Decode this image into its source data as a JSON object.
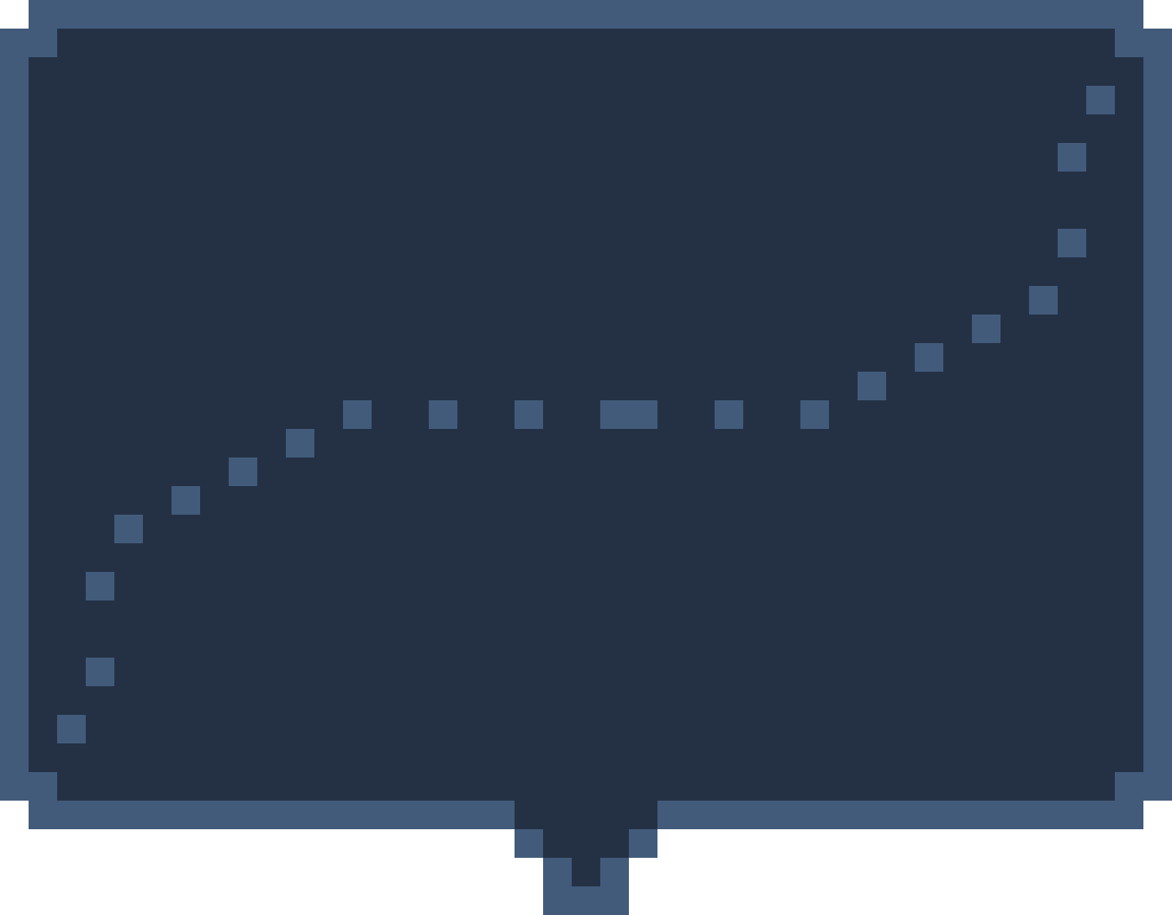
{
  "widget": {
    "kind": "pixel-art speech bubble",
    "text": ""
  },
  "colors": {
    "background": "#ffffff",
    "border": "#425b7b",
    "fill": "#243145",
    "decoration": "#425b7b"
  }
}
